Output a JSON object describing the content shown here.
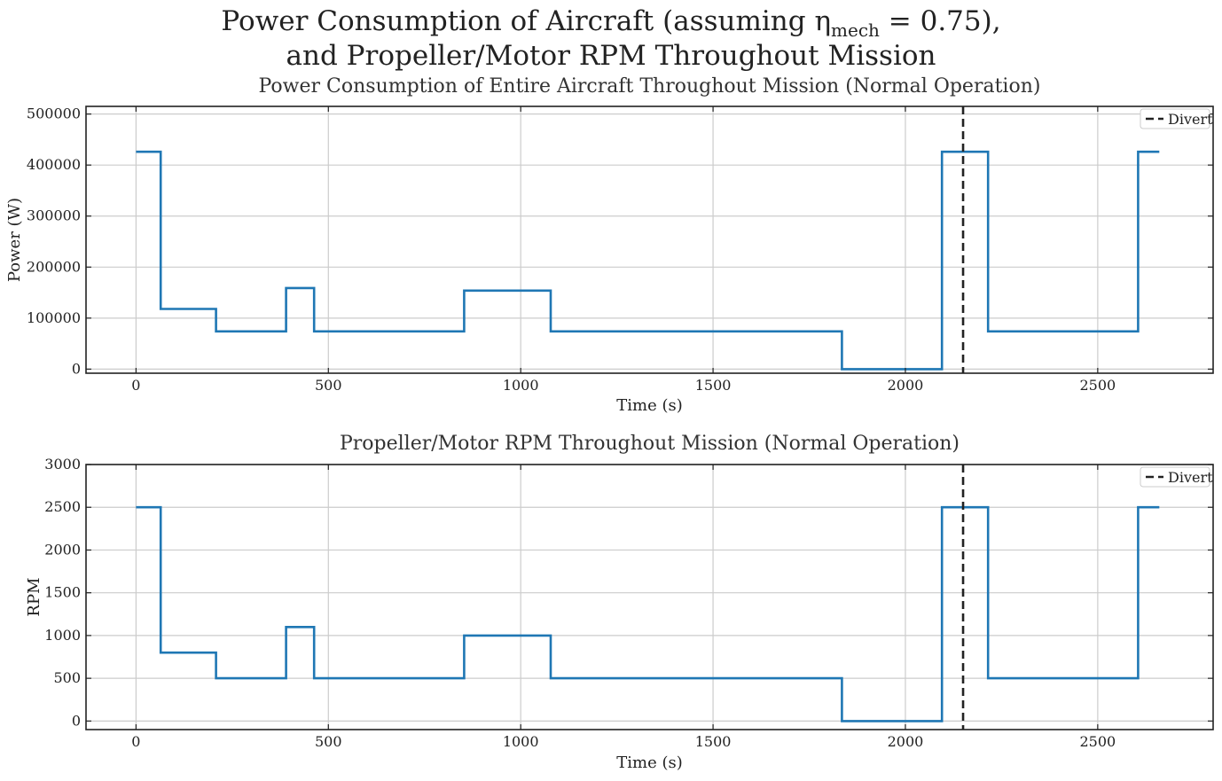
{
  "suptitle_line1": "Power Consumption of Aircraft (assuming η",
  "suptitle_sub": "mech",
  "suptitle_rest": " = 0.75),",
  "suptitle_line2": "and Propeller/Motor RPM Throughout Mission",
  "colors": {
    "series": "#1f77b4",
    "divert": "#222222",
    "grid": "#cccccc"
  },
  "chart_data": [
    {
      "type": "line",
      "title": "Power Consumption of Entire Aircraft Throughout Mission (Normal Operation)",
      "xlabel": "Time (s)",
      "ylabel": "Power (W)",
      "xlim": [
        -130,
        2800
      ],
      "ylim": [
        -8000,
        515000
      ],
      "xticks": [
        0,
        500,
        1000,
        1500,
        2000,
        2500
      ],
      "yticks": [
        0,
        100000,
        200000,
        300000,
        400000,
        500000
      ],
      "grid": true,
      "legend_position": "top-right",
      "legend": [
        "Divert"
      ],
      "divert_x": 2150,
      "x": [
        0,
        64,
        64,
        208,
        208,
        390,
        390,
        463,
        463,
        853,
        853,
        1078,
        1078,
        1835,
        1835,
        2095,
        2095,
        2215,
        2215,
        2605,
        2605,
        2660
      ],
      "y": [
        426000,
        426000,
        118000,
        118000,
        74000,
        74000,
        159000,
        159000,
        74000,
        74000,
        154000,
        154000,
        74000,
        74000,
        0,
        0,
        426000,
        426000,
        74000,
        74000,
        426000,
        426000
      ]
    },
    {
      "type": "line",
      "title": "Propeller/Motor RPM Throughout Mission (Normal Operation)",
      "xlabel": "Time (s)",
      "ylabel": "RPM",
      "xlim": [
        -130,
        2800
      ],
      "ylim": [
        -100,
        3000
      ],
      "xticks": [
        0,
        500,
        1000,
        1500,
        2000,
        2500
      ],
      "yticks": [
        0,
        500,
        1000,
        1500,
        2000,
        2500,
        3000
      ],
      "grid": true,
      "legend_position": "top-right",
      "legend": [
        "Divert"
      ],
      "divert_x": 2150,
      "x": [
        0,
        64,
        64,
        208,
        208,
        390,
        390,
        463,
        463,
        853,
        853,
        1078,
        1078,
        1835,
        1835,
        2095,
        2095,
        2215,
        2215,
        2605,
        2605,
        2660
      ],
      "y": [
        2500,
        2500,
        800,
        800,
        500,
        500,
        1100,
        1100,
        500,
        500,
        1000,
        1000,
        500,
        500,
        0,
        0,
        2500,
        2500,
        500,
        500,
        2500,
        2500
      ]
    }
  ]
}
